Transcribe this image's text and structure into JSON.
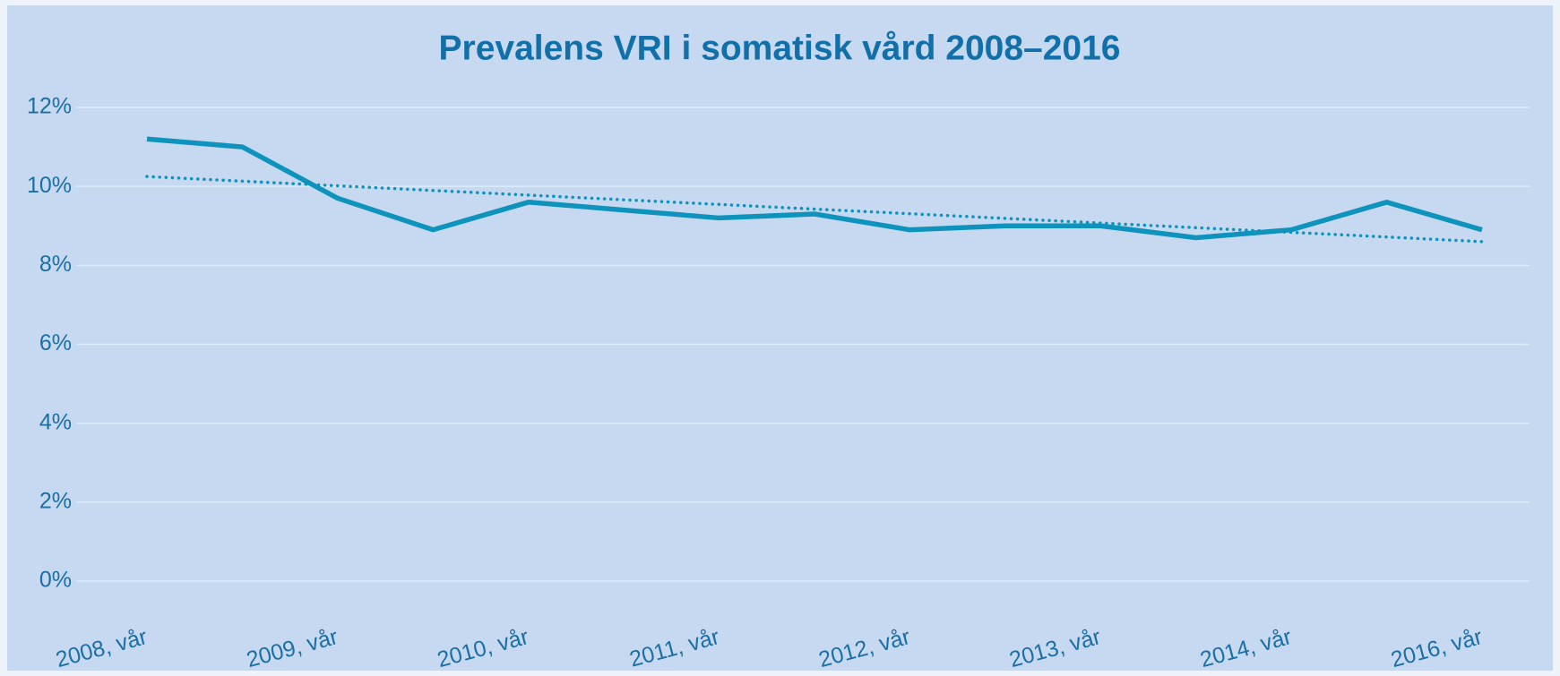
{
  "chart_data": {
    "type": "line",
    "title": "Prevalens VRI i somatisk vård 2008–2016",
    "categories": [
      "2008, vår",
      null,
      "2009, vår",
      null,
      "2010, vår",
      null,
      "2011, vår",
      null,
      "2012, vår",
      null,
      "2013, vår",
      null,
      "2014, vår",
      null,
      "2016, vår"
    ],
    "series": [
      {
        "color": "#0e93bd",
        "values": [
          11.2,
          11.0,
          9.7,
          8.9,
          9.6,
          9.4,
          9.2,
          9.3,
          8.9,
          9.0,
          9.0,
          8.7,
          8.9,
          9.6,
          8.9
        ]
      }
    ],
    "trendline": {
      "start": 10.25,
      "end": 8.6,
      "color": "#0e93bd",
      "style": "dotted"
    },
    "ylim": [
      0,
      12
    ],
    "yticks": [
      {
        "value": 0,
        "label": "0%"
      },
      {
        "value": 2,
        "label": "2%"
      },
      {
        "value": 4,
        "label": "4%"
      },
      {
        "value": 6,
        "label": "6%"
      },
      {
        "value": 8,
        "label": "8%"
      },
      {
        "value": 10,
        "label": "10%"
      },
      {
        "value": 12,
        "label": "12%"
      }
    ],
    "grid": true
  }
}
